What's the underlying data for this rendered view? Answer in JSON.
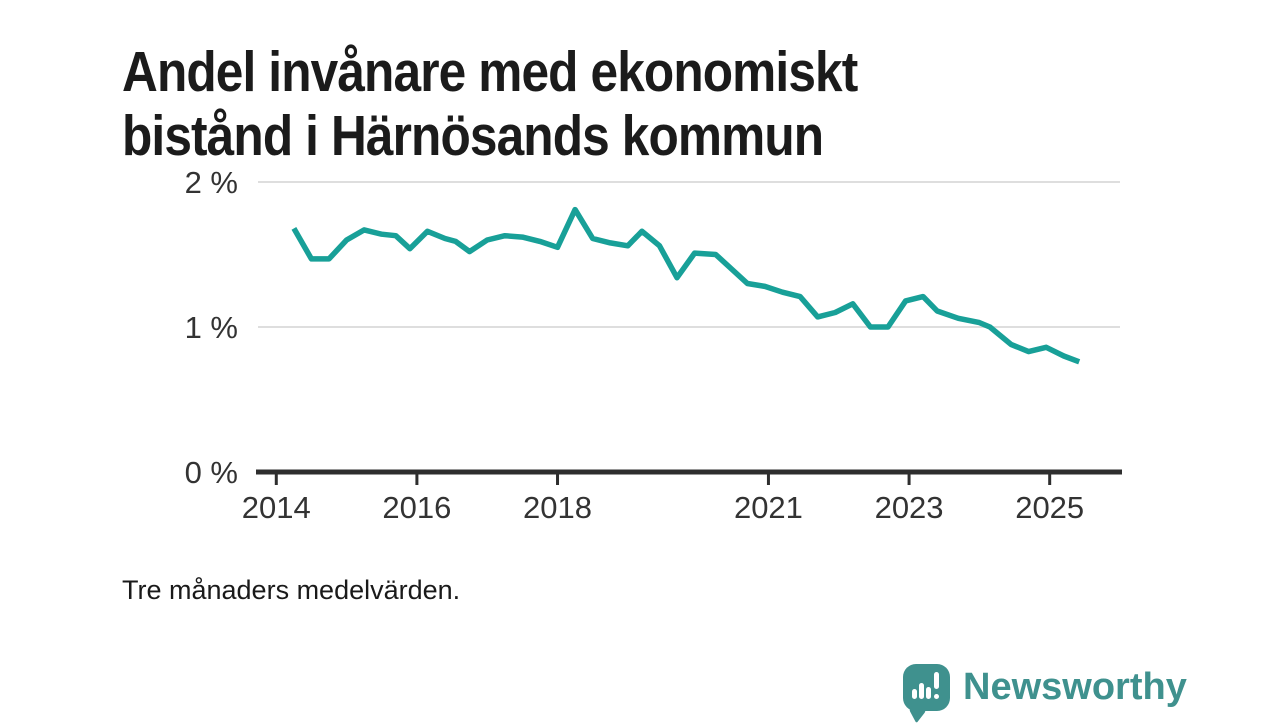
{
  "header": {
    "title_lines": [
      "Andel invånare med ekonomiskt",
      "bistånd i Härnösands kommun"
    ]
  },
  "footer": {
    "note": "Tre månaders medelvärden.",
    "brand": "Newsworthy"
  },
  "colors": {
    "line": "#18a098",
    "grid": "#dedede",
    "axis": "#2e2e2e",
    "tick_text": "#333333",
    "title_text": "#1b1b1b",
    "brand": "#3f918e"
  },
  "icons": {
    "logo": "newsworthy-speech-bubble-barchart-icon"
  },
  "chart_data": {
    "type": "line",
    "title": "Andel invånare med ekonomiskt bistånd i Härnösands kommun",
    "note": "Tre månaders medelvärden.",
    "unit": "%",
    "legend": "none",
    "grid": "horizontal-only",
    "x_ticks": [
      2014,
      2016,
      2018,
      2021,
      2023,
      2025
    ],
    "y_ticks": [
      {
        "value": 0,
        "label": "0 %"
      },
      {
        "value": 1,
        "label": "1 %"
      },
      {
        "value": 2,
        "label": "2 %"
      }
    ],
    "xlim": [
      2013.74,
      2026.0
    ],
    "ylim": [
      0,
      2
    ],
    "points": [
      [
        2014.25,
        1.68
      ],
      [
        2014.5,
        1.47
      ],
      [
        2014.75,
        1.47
      ],
      [
        2015.0,
        1.6
      ],
      [
        2015.25,
        1.67
      ],
      [
        2015.5,
        1.64
      ],
      [
        2015.7,
        1.63
      ],
      [
        2015.9,
        1.54
      ],
      [
        2016.15,
        1.66
      ],
      [
        2016.4,
        1.61
      ],
      [
        2016.55,
        1.59
      ],
      [
        2016.75,
        1.52
      ],
      [
        2017.0,
        1.6
      ],
      [
        2017.25,
        1.63
      ],
      [
        2017.5,
        1.62
      ],
      [
        2017.75,
        1.59
      ],
      [
        2018.0,
        1.55
      ],
      [
        2018.25,
        1.81
      ],
      [
        2018.5,
        1.61
      ],
      [
        2018.75,
        1.58
      ],
      [
        2019.0,
        1.56
      ],
      [
        2019.2,
        1.66
      ],
      [
        2019.45,
        1.56
      ],
      [
        2019.7,
        1.34
      ],
      [
        2019.95,
        1.51
      ],
      [
        2020.25,
        1.5
      ],
      [
        2020.7,
        1.3
      ],
      [
        2020.95,
        1.28
      ],
      [
        2021.2,
        1.24
      ],
      [
        2021.45,
        1.21
      ],
      [
        2021.7,
        1.07
      ],
      [
        2021.95,
        1.1
      ],
      [
        2022.2,
        1.16
      ],
      [
        2022.45,
        1.0
      ],
      [
        2022.7,
        1.0
      ],
      [
        2022.95,
        1.18
      ],
      [
        2023.2,
        1.21
      ],
      [
        2023.4,
        1.11
      ],
      [
        2023.7,
        1.06
      ],
      [
        2024.0,
        1.03
      ],
      [
        2024.15,
        1.0
      ],
      [
        2024.45,
        0.88
      ],
      [
        2024.7,
        0.83
      ],
      [
        2024.95,
        0.86
      ],
      [
        2025.2,
        0.8
      ],
      [
        2025.42,
        0.76
      ]
    ]
  }
}
